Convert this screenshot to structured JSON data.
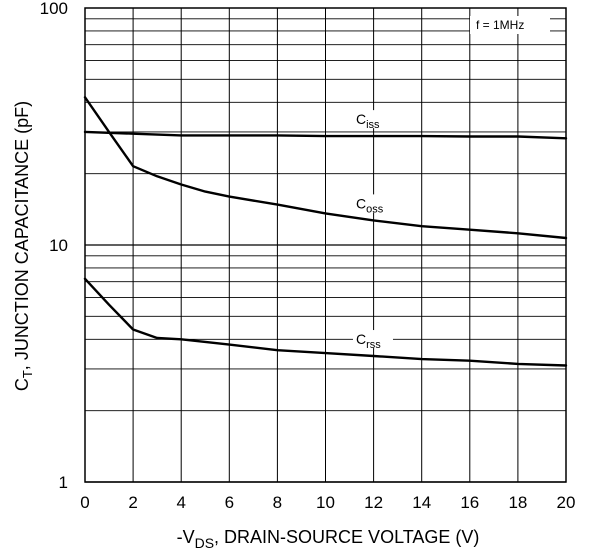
{
  "chart_data": {
    "type": "line",
    "ylabel_main": "C",
    "ylabel_sub": "T",
    "ylabel_rest": ", JUNCTION CAPACITANCE (pF)",
    "xlabel_pre": "-V",
    "xlabel_sub": "DS",
    "xlabel_rest": ", DRAIN-SOURCE VOLTAGE (V)",
    "annotation": "f = 1MHz",
    "xlim": [
      0,
      20
    ],
    "ylim": [
      1,
      100
    ],
    "yscale": "log",
    "grid": true,
    "x_ticks": [
      "0",
      "2",
      "4",
      "6",
      "8",
      "10",
      "12",
      "14",
      "16",
      "18",
      "20"
    ],
    "y_ticks": [
      "1",
      "10",
      "100"
    ],
    "series": [
      {
        "name_main": "C",
        "name_sub": "iss",
        "x": [
          0,
          2,
          4,
          6,
          8,
          10,
          12,
          14,
          16,
          18,
          20
        ],
        "y": [
          30,
          29.5,
          29,
          29,
          29,
          28.8,
          28.8,
          28.8,
          28.7,
          28.7,
          28.2
        ]
      },
      {
        "name_main": "C",
        "name_sub": "oss",
        "x": [
          0,
          1,
          2,
          3,
          4,
          5,
          6,
          8,
          10,
          12,
          14,
          16,
          18,
          20
        ],
        "y": [
          42,
          30,
          21.5,
          19.5,
          18,
          16.8,
          16,
          14.8,
          13.6,
          12.7,
          12,
          11.6,
          11.2,
          10.7
        ]
      },
      {
        "name_main": "C",
        "name_sub": "rss",
        "x": [
          0,
          1,
          2,
          3,
          4,
          5,
          6,
          8,
          10,
          12,
          14,
          16,
          18,
          20
        ],
        "y": [
          7.2,
          5.6,
          4.4,
          4.05,
          4.0,
          3.9,
          3.8,
          3.6,
          3.5,
          3.4,
          3.3,
          3.25,
          3.15,
          3.1
        ]
      }
    ]
  }
}
